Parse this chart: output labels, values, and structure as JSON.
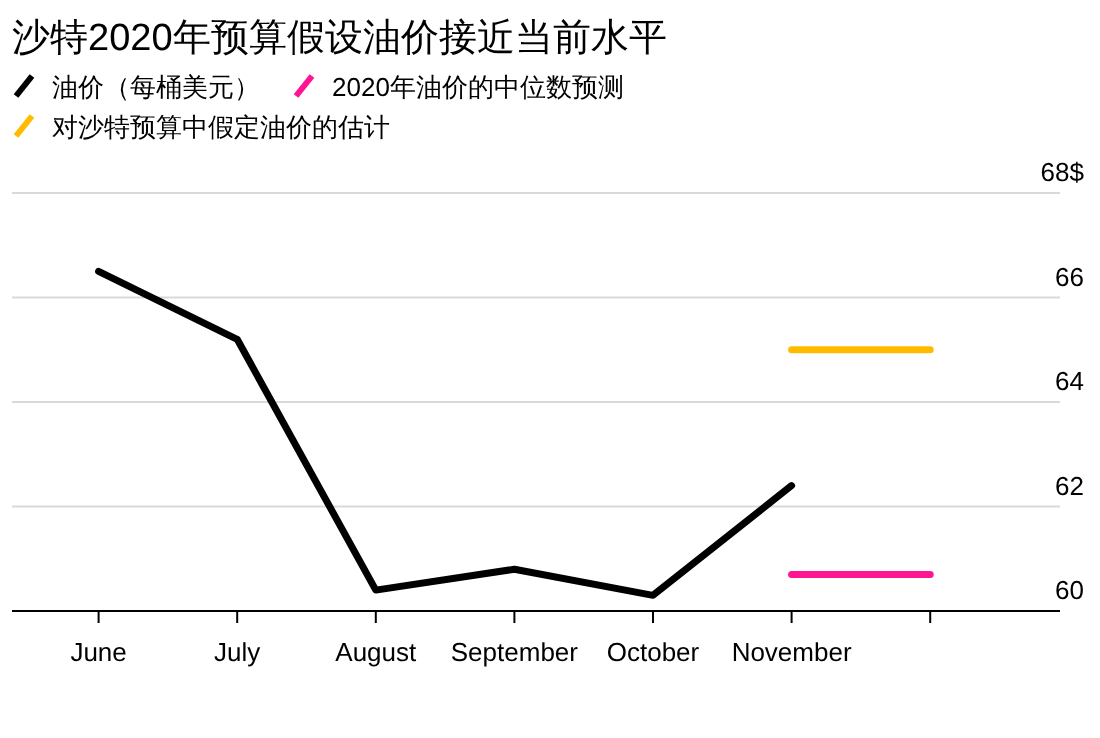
{
  "chart_data": {
    "type": "line",
    "title": "沙特2020年预算假设油价接近当前水平",
    "categories": [
      "June",
      "July",
      "August",
      "September",
      "October",
      "November",
      null
    ],
    "series": [
      {
        "name": "油价（每桶美元）",
        "color": "#000000",
        "values": [
          66.5,
          65.2,
          60.4,
          60.8,
          60.3,
          62.4,
          null
        ]
      },
      {
        "name": "2020年油价的中位数预测",
        "color": "#ff1493",
        "values": [
          null,
          null,
          null,
          null,
          null,
          60.7,
          60.7
        ]
      },
      {
        "name": "对沙特预算中假定油价的估计",
        "color": "#ffbb00",
        "values": [
          null,
          null,
          null,
          null,
          null,
          65.0,
          65.0
        ]
      }
    ],
    "ylim": [
      60,
      68
    ],
    "yticks": [
      60,
      62,
      64,
      66,
      {
        "value": 68,
        "label": "68$"
      }
    ],
    "grid": "y",
    "legend": "top left",
    "line_style": "solid",
    "marker": "none"
  }
}
